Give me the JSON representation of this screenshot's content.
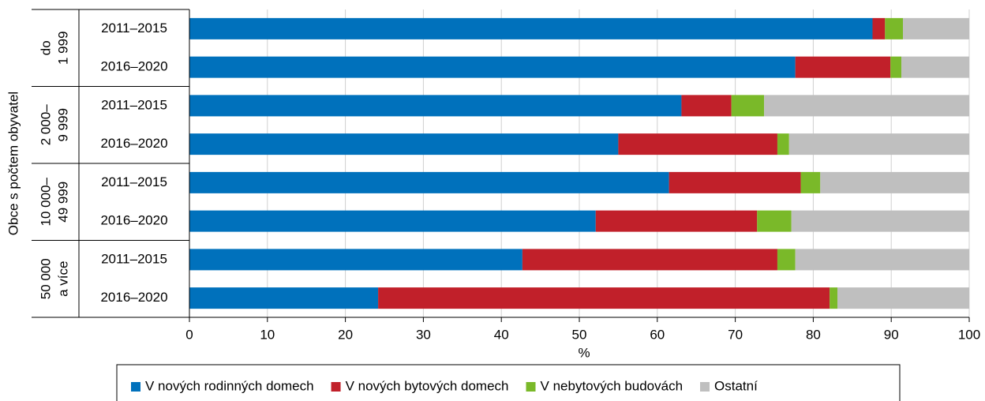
{
  "chart_data": {
    "type": "stacked-barh",
    "y_title": "Obce s počtem obyvatel",
    "x_title": "%",
    "groups": [
      [
        "do",
        "1 999"
      ],
      [
        "2 000–",
        "9 999"
      ],
      [
        "10 000–",
        "49 999"
      ],
      [
        "50 000",
        "a více"
      ]
    ],
    "categories": [
      "2011–2015",
      "2016–2020",
      "2011–2015",
      "2016–2020",
      "2011–2015",
      "2016–2020",
      "2011–2015",
      "2016–2020"
    ],
    "series": [
      {
        "name": "V nových rodinných domech",
        "color": "#0071bc",
        "values": [
          87.6,
          77.7,
          63.1,
          55.0,
          61.5,
          52.1,
          42.7,
          24.2
        ]
      },
      {
        "name": "V nových bytových domech",
        "color": "#c1202a",
        "values": [
          1.6,
          12.2,
          6.4,
          20.4,
          16.9,
          20.7,
          32.7,
          57.9
        ]
      },
      {
        "name": "V nebytových budovách",
        "color": "#7ab929",
        "values": [
          2.3,
          1.4,
          4.2,
          1.5,
          2.5,
          4.4,
          2.3,
          1.0
        ]
      },
      {
        "name": "Ostatní",
        "color": "#bfbfbf",
        "values": [
          8.5,
          8.7,
          26.3,
          23.1,
          19.1,
          22.8,
          22.3,
          16.9
        ]
      }
    ],
    "xlim": [
      0,
      100
    ],
    "xticks": [
      0,
      10,
      20,
      30,
      40,
      50,
      60,
      70,
      80,
      90,
      100
    ],
    "grid": true
  }
}
